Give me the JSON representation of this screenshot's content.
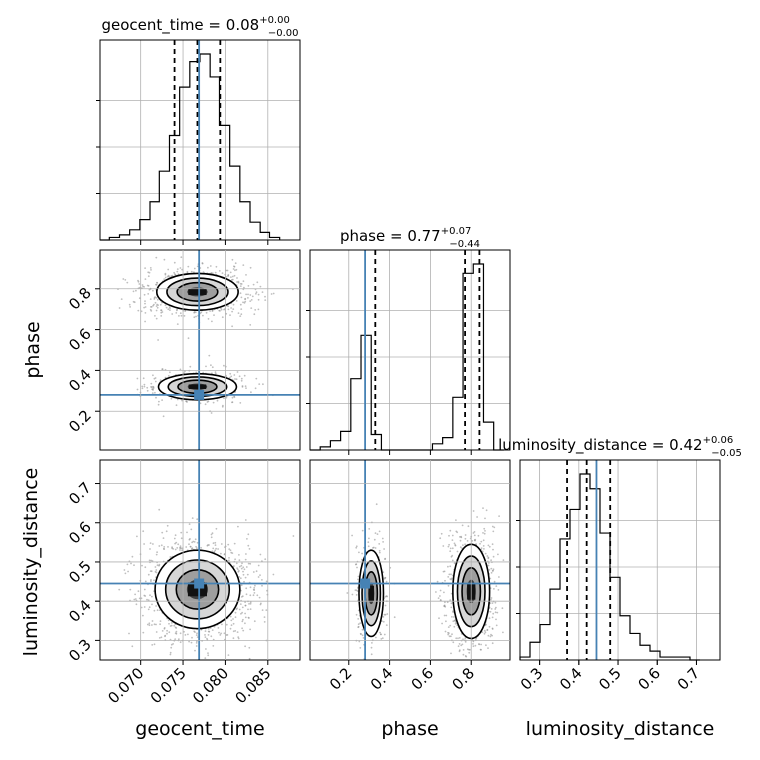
{
  "chart_data": {
    "type": "corner",
    "parameters": [
      "geocent_time",
      "phase",
      "luminosity_distance"
    ],
    "titles": [
      {
        "param": "geocent_time",
        "prefix": "geocent_time = ",
        "median": "0.08",
        "plus": "+0.00",
        "minus": "−0.00"
      },
      {
        "param": "phase",
        "prefix": "phase = ",
        "median": "0.77",
        "plus": "+0.07",
        "minus": "−0.44"
      },
      {
        "param": "luminosity_distance",
        "prefix": "luminosity_distance = ",
        "median": "0.42",
        "plus": "+0.06",
        "minus": "−0.05"
      }
    ],
    "axes": {
      "geocent_time": {
        "range": [
          0.0652,
          0.0888
        ],
        "ticks": [
          0.07,
          0.075,
          0.08,
          0.085
        ],
        "tick_labels": [
          "0.070",
          "0.075",
          "0.080",
          "0.085"
        ]
      },
      "phase": {
        "range": [
          0.01,
          0.99
        ],
        "ticks": [
          0.2,
          0.4,
          0.6,
          0.8
        ],
        "tick_labels": [
          "0.2",
          "0.4",
          "0.6",
          "0.8"
        ]
      },
      "luminosity_distance": {
        "range": [
          0.25,
          0.76
        ],
        "ticks": [
          0.3,
          0.4,
          0.5,
          0.6,
          0.7
        ],
        "tick_labels": [
          "0.3",
          "0.4",
          "0.5",
          "0.6",
          "0.7"
        ]
      }
    },
    "truths": {
      "geocent_time": 0.0769,
      "phase": 0.28,
      "luminosity_distance": 0.445
    },
    "quantiles": {
      "geocent_time": [
        0.074,
        0.0767,
        0.0794
      ],
      "phase": [
        0.33,
        0.77,
        0.84
      ],
      "luminosity_distance": [
        0.37,
        0.42,
        0.48
      ]
    },
    "histograms": {
      "geocent_time": {
        "bins": [
          0.0652,
          0.0663,
          0.0675,
          0.0687,
          0.0699,
          0.0711,
          0.0722,
          0.0734,
          0.0746,
          0.0758,
          0.077,
          0.0782,
          0.0793,
          0.0805,
          0.0817,
          0.0829,
          0.0841,
          0.0852,
          0.0864
        ],
        "counts": [
          0,
          1,
          2,
          4,
          8,
          15,
          27,
          41,
          60,
          70,
          73,
          64,
          45,
          29,
          15,
          7,
          3,
          1
        ]
      },
      "phase": {
        "bins": [
          0.01,
          0.06,
          0.11,
          0.16,
          0.21,
          0.26,
          0.31,
          0.36,
          0.41,
          0.46,
          0.51,
          0.56,
          0.61,
          0.66,
          0.71,
          0.76,
          0.81,
          0.86,
          0.91,
          0.96
        ],
        "counts": [
          0,
          1,
          3,
          6,
          23,
          37,
          5,
          0,
          0,
          0,
          0,
          0,
          2,
          4,
          17,
          57,
          60,
          9,
          0
        ]
      },
      "luminosity_distance": {
        "bins": [
          0.25,
          0.2755,
          0.301,
          0.3265,
          0.352,
          0.3775,
          0.403,
          0.4285,
          0.454,
          0.4795,
          0.505,
          0.5305,
          0.556,
          0.5815,
          0.607,
          0.6325,
          0.658,
          0.6835,
          0.709
        ],
        "counts": [
          1,
          6,
          12,
          24,
          41,
          51,
          63,
          58,
          43,
          28,
          15,
          9,
          5,
          3,
          1,
          1,
          1,
          0
        ]
      }
    },
    "clusters": {
      "phase_vs_geocent_time": [
        {
          "x": 0.0767,
          "y": 0.785,
          "sx": 0.0024,
          "sy": 0.045,
          "weight": 0.72
        },
        {
          "x": 0.0767,
          "y": 0.32,
          "sx": 0.0023,
          "sy": 0.032,
          "weight": 0.28
        }
      ],
      "luminosity_distance_vs_geocent_time": [
        {
          "x": 0.0767,
          "y": 0.43,
          "sx": 0.0025,
          "sy": 0.05,
          "weight": 1.0
        }
      ],
      "luminosity_distance_vs_phase": [
        {
          "x": 0.31,
          "y": 0.42,
          "sx": 0.03,
          "sy": 0.055,
          "weight": 0.3
        },
        {
          "x": 0.8,
          "y": 0.425,
          "sx": 0.045,
          "sy": 0.06,
          "weight": 0.7
        }
      ]
    },
    "truth_color": "#4682b4",
    "contour_color": "#000000",
    "grid": true
  }
}
